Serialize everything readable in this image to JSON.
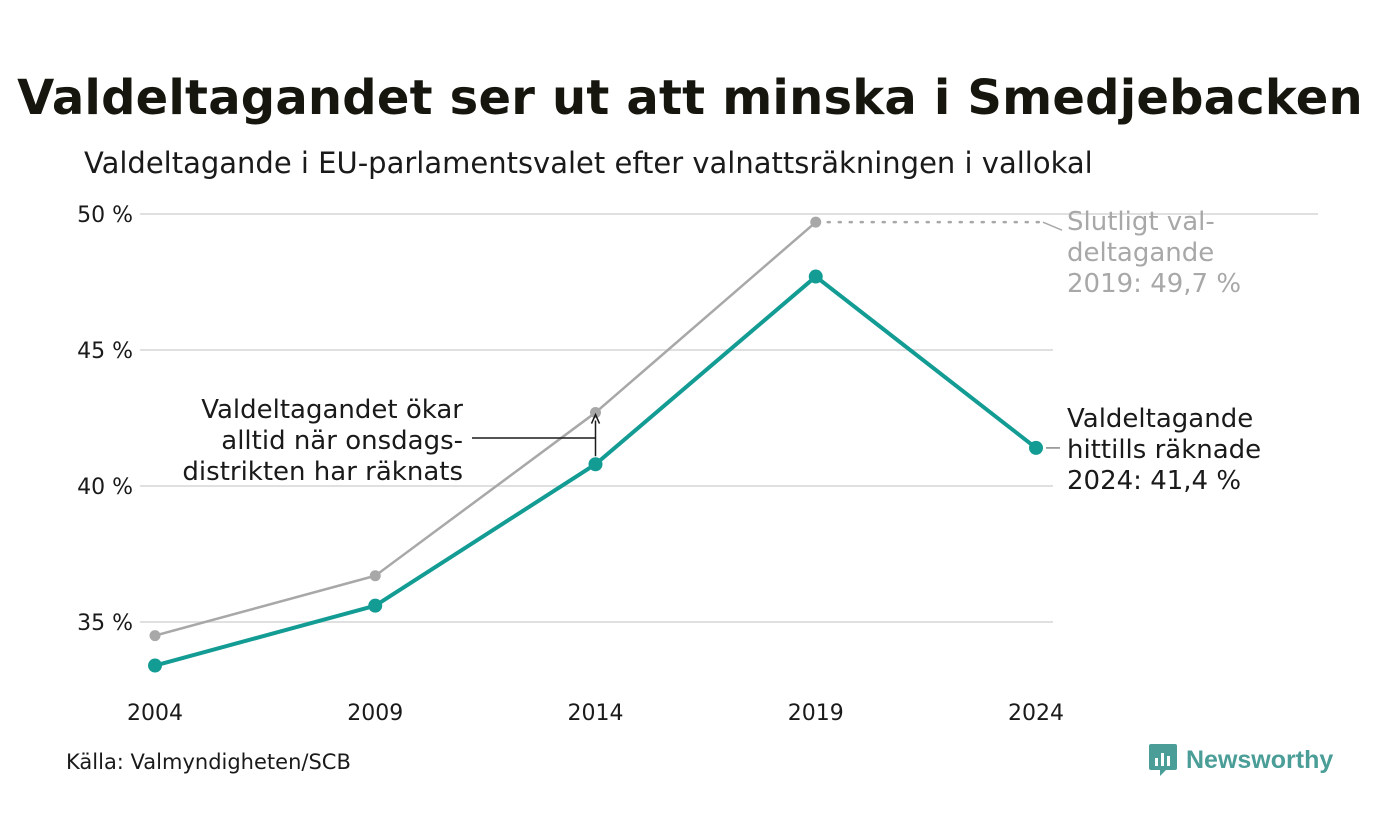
{
  "title": "Valdeltagandet ser ut att minska i Smedjebacken",
  "subtitle": "Valdeltagande i EU-parlamentsvalet efter valnattsräkningen i vallokal",
  "source": "Källa: Valmyndigheten/SCB",
  "brand": "Newsworthy",
  "colors": {
    "highlight": "#139c94",
    "final": "#a8a8a8",
    "grid": "#e0e0e0",
    "text": "#1a1a1a",
    "brand": "#4a9e97"
  },
  "chart_data": {
    "type": "line",
    "x": [
      "2004",
      "2009",
      "2014",
      "2019",
      "2024"
    ],
    "ylim": [
      33,
      50.5
    ],
    "yticks": [
      35,
      40,
      45,
      50
    ],
    "ytick_labels": [
      "35 %",
      "40 %",
      "45 %",
      "50 %"
    ],
    "grid": true,
    "series": [
      {
        "key": "final",
        "values": [
          34.5,
          36.7,
          42.7,
          49.7,
          null
        ]
      },
      {
        "key": "election_night",
        "values": [
          33.4,
          35.6,
          40.8,
          47.7,
          41.4
        ]
      }
    ],
    "annotations": {
      "final_2019": [
        "Slutligt val-",
        "deltagande",
        "2019: 49,7 %"
      ],
      "current_2024": [
        "Valdeltagande",
        "hittills räknade",
        "2024: 41,4 %"
      ],
      "wednesday": [
        "Valdeltagandet ökar",
        "alltid när onsdags-",
        "distrikten har räknats"
      ]
    }
  }
}
